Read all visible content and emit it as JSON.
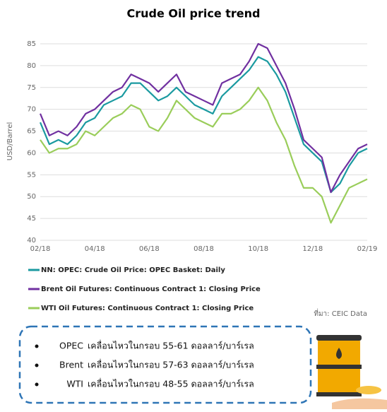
{
  "chart_data": {
    "type": "line",
    "title": "Crude Oil price trend",
    "y_label": "USD/Barrel",
    "categories": [
      "02/18",
      null,
      null,
      null,
      null,
      null,
      "04/18",
      null,
      null,
      null,
      null,
      null,
      "06/18",
      null,
      null,
      null,
      null,
      null,
      "08/18",
      null,
      null,
      null,
      null,
      null,
      "10/18",
      null,
      null,
      null,
      null,
      null,
      "12/18",
      null,
      null,
      null,
      null,
      null,
      "02/19"
    ],
    "series": [
      {
        "name": "NN: OPEC: Crude Oil Price: OPEC Basket: Daily",
        "color": "#1a9aa0",
        "values": [
          67,
          62,
          63,
          62,
          64,
          67,
          68,
          71,
          72,
          73,
          76,
          76,
          74,
          72,
          73,
          75,
          73,
          71,
          70,
          69,
          73,
          75,
          77,
          79,
          82,
          81,
          78,
          74,
          68,
          62,
          60,
          58,
          51,
          53,
          57,
          60,
          61
        ]
      },
      {
        "name": "Brent Oil Futures: Continuous Contract 1: Closing Price",
        "color": "#7030a0",
        "values": [
          69,
          64,
          65,
          64,
          66,
          69,
          70,
          72,
          74,
          75,
          78,
          77,
          76,
          74,
          76,
          78,
          74,
          73,
          72,
          71,
          76,
          77,
          78,
          81,
          85,
          84,
          80,
          76,
          70,
          63,
          61,
          59,
          51,
          55,
          58,
          61,
          62
        ]
      },
      {
        "name": "WTI Oil Futures: Continuous Contract 1: Closing Price",
        "color": "#9acd5a",
        "values": [
          63,
          60,
          61,
          61,
          62,
          65,
          64,
          66,
          68,
          69,
          71,
          70,
          66,
          65,
          68,
          72,
          70,
          68,
          67,
          66,
          69,
          69,
          70,
          72,
          75,
          72,
          67,
          63,
          57,
          52,
          52,
          50,
          44,
          48,
          52,
          53,
          54
        ]
      }
    ],
    "ylim": [
      40,
      85
    ],
    "yticks": [
      40,
      45,
      50,
      55,
      60,
      65,
      70,
      75,
      80,
      85
    ],
    "grid": true,
    "source": "ที่มา: CEIC Data",
    "notes": [
      {
        "name": "OPEC",
        "text": "เคลื่อนไหวในกรอบ  55-61  ดอลลาร์/บาร์เรล"
      },
      {
        "name": "Brent",
        "text": "เคลื่อนไหวในกรอบ 57-63 ดอลลาร์/บาร์เรล"
      },
      {
        "name": "WTI",
        "text": "เคลื่อนไหวในกรอบ 48-55 ดอลลาร์/บาร์เรล"
      }
    ]
  }
}
